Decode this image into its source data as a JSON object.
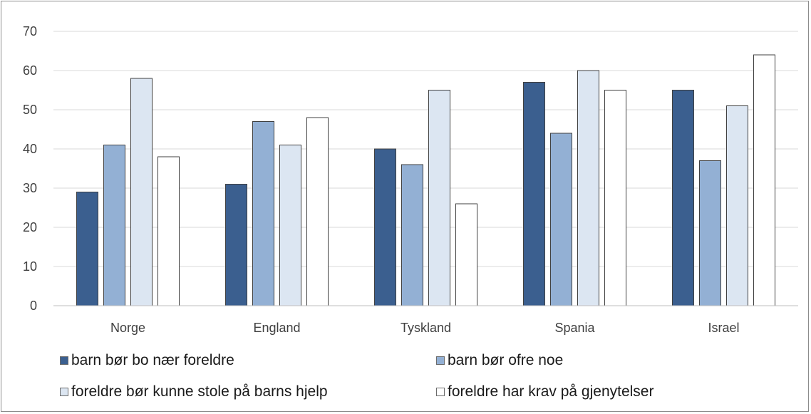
{
  "chart_data": {
    "type": "bar",
    "categories": [
      "Norge",
      "England",
      "Tyskland",
      "Spania",
      "Israel"
    ],
    "series": [
      {
        "name": "barn bør bo nær foreldre",
        "values": [
          29,
          31,
          40,
          57,
          55
        ],
        "color": "#3b5f8f"
      },
      {
        "name": "barn bør ofre noe",
        "values": [
          41,
          47,
          36,
          44,
          37
        ],
        "color": "#93b0d4"
      },
      {
        "name": "foreldre bør kunne stole på barns hjelp",
        "values": [
          58,
          41,
          55,
          60,
          51
        ],
        "color": "#dce6f2"
      },
      {
        "name": "foreldre har krav på gjenytelser",
        "values": [
          38,
          48,
          26,
          55,
          64
        ],
        "color": "#ffffff"
      }
    ],
    "ylim": [
      0,
      70
    ],
    "yticks": [
      0,
      10,
      20,
      30,
      40,
      50,
      60,
      70
    ],
    "grid": true,
    "legend_position": "bottom",
    "gridline_color": "#d9d9d9",
    "bar_border_color": "#404040"
  }
}
